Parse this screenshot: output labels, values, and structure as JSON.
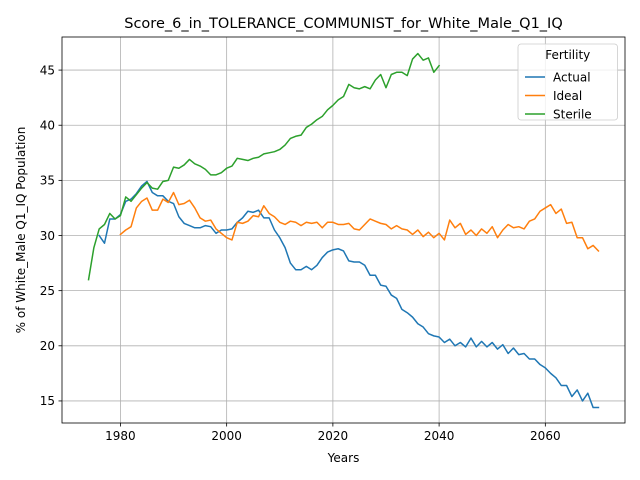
{
  "chart_data": {
    "type": "line",
    "title": "Score_6_in_TOLERANCE_COMMUNIST_for_White_Male_Q1_IQ",
    "xlabel": "Years",
    "ylabel": "% of White_Male Q1_IQ Population",
    "xlim": [
      1969,
      2075
    ],
    "ylim": [
      13,
      48
    ],
    "xticks": [
      1980,
      2000,
      2020,
      2040,
      2060
    ],
    "yticks": [
      15,
      20,
      25,
      30,
      35,
      40,
      45
    ],
    "grid": true,
    "legend": {
      "title": "Fertility",
      "placement": "upper right"
    },
    "series": [
      {
        "name": "Actual",
        "color": "#1f77b4",
        "x": [
          1976,
          1977,
          1978,
          1979,
          1980,
          1981,
          1982,
          1983,
          1984,
          1985,
          1986,
          1987,
          1988,
          1989,
          1990,
          1991,
          1992,
          1993,
          1994,
          1995,
          1996,
          1997,
          1998,
          1999,
          2000,
          2001,
          2002,
          2003,
          2004,
          2005,
          2006,
          2007,
          2008,
          2009,
          2010,
          2011,
          2012,
          2013,
          2014,
          2015,
          2016,
          2017,
          2018,
          2019,
          2020,
          2021,
          2022,
          2023,
          2024,
          2025,
          2026,
          2027,
          2028,
          2029,
          2030,
          2031,
          2032,
          2033,
          2034,
          2035,
          2036,
          2037,
          2038,
          2039,
          2040,
          2041,
          2042,
          2043,
          2044,
          2045,
          2046,
          2047,
          2048,
          2049,
          2050,
          2051,
          2052,
          2053,
          2054,
          2055,
          2056,
          2057,
          2058,
          2059,
          2060,
          2061,
          2062,
          2063,
          2064,
          2065,
          2066,
          2067,
          2068,
          2069,
          2070
        ],
        "values": [
          30.0,
          29.3,
          31.5,
          31.5,
          31.9,
          33.1,
          33.3,
          33.8,
          34.5,
          34.9,
          33.9,
          33.6,
          33.6,
          33.1,
          32.9,
          31.7,
          31.1,
          30.9,
          30.7,
          30.7,
          30.9,
          30.8,
          30.2,
          30.5,
          30.5,
          30.6,
          31.2,
          31.6,
          32.2,
          32.1,
          32.3,
          31.6,
          31.6,
          30.5,
          29.8,
          28.9,
          27.5,
          26.9,
          26.9,
          27.2,
          26.9,
          27.3,
          28.0,
          28.5,
          28.7,
          28.8,
          28.6,
          27.7,
          27.6,
          27.6,
          27.3,
          26.4,
          26.4,
          25.5,
          25.4,
          24.6,
          24.3,
          23.3,
          23.0,
          22.6,
          22.0,
          21.7,
          21.1,
          20.9,
          20.8,
          20.3,
          20.6,
          20.0,
          20.3,
          19.9,
          20.7,
          19.9,
          20.4,
          19.9,
          20.3,
          19.7,
          20.1,
          19.3,
          19.8,
          19.2,
          19.3,
          18.8,
          18.8,
          18.3,
          18.0,
          17.5,
          17.1,
          16.4,
          16.4,
          15.4,
          16.0,
          15.0,
          15.7,
          14.4,
          14.4
        ]
      },
      {
        "name": "Ideal",
        "color": "#ff7f0e",
        "x": [
          1980,
          1981,
          1982,
          1983,
          1984,
          1985,
          1986,
          1987,
          1988,
          1989,
          1990,
          1991,
          1992,
          1993,
          1994,
          1995,
          1996,
          1997,
          1998,
          1999,
          2000,
          2001,
          2002,
          2003,
          2004,
          2005,
          2006,
          2007,
          2008,
          2009,
          2010,
          2011,
          2012,
          2013,
          2014,
          2015,
          2016,
          2017,
          2018,
          2019,
          2020,
          2021,
          2022,
          2023,
          2024,
          2025,
          2026,
          2027,
          2028,
          2029,
          2030,
          2031,
          2032,
          2033,
          2034,
          2035,
          2036,
          2037,
          2038,
          2039,
          2040,
          2041,
          2042,
          2043,
          2044,
          2045,
          2046,
          2047,
          2048,
          2049,
          2050,
          2051,
          2052,
          2053,
          2054,
          2055,
          2056,
          2057,
          2058,
          2059,
          2060,
          2061,
          2062,
          2063,
          2064,
          2065,
          2066,
          2067,
          2068,
          2069,
          2070
        ],
        "values": [
          30.1,
          30.5,
          30.8,
          32.5,
          33.1,
          33.4,
          32.3,
          32.3,
          33.3,
          33.0,
          33.9,
          32.8,
          32.9,
          33.2,
          32.5,
          31.6,
          31.3,
          31.4,
          30.6,
          30.2,
          29.8,
          29.6,
          31.2,
          31.1,
          31.3,
          31.8,
          31.7,
          32.7,
          32.0,
          31.7,
          31.2,
          31.0,
          31.3,
          31.2,
          30.9,
          31.2,
          31.1,
          31.2,
          30.7,
          31.2,
          31.2,
          31.0,
          31.0,
          31.1,
          30.6,
          30.5,
          31.0,
          31.5,
          31.3,
          31.1,
          31.0,
          30.6,
          30.9,
          30.6,
          30.5,
          30.1,
          30.5,
          29.9,
          30.3,
          29.8,
          30.2,
          29.6,
          31.4,
          30.7,
          31.1,
          30.1,
          30.5,
          30.0,
          30.6,
          30.2,
          30.8,
          29.8,
          30.5,
          31.0,
          30.7,
          30.8,
          30.6,
          31.3,
          31.5,
          32.2,
          32.5,
          32.8,
          32.0,
          32.4,
          31.1,
          31.2,
          29.8,
          29.8,
          28.8,
          29.1,
          28.6
        ]
      },
      {
        "name": "Sterile",
        "color": "#2ca02c",
        "x": [
          1974,
          1975,
          1976,
          1977,
          1978,
          1979,
          1980,
          1981,
          1982,
          1983,
          1984,
          1985,
          1986,
          1987,
          1988,
          1989,
          1990,
          1991,
          1992,
          1993,
          1994,
          1995,
          1996,
          1997,
          1998,
          1999,
          2000,
          2001,
          2002,
          2003,
          2004,
          2005,
          2006,
          2007,
          2008,
          2009,
          2010,
          2011,
          2012,
          2013,
          2014,
          2015,
          2016,
          2017,
          2018,
          2019,
          2020,
          2021,
          2022,
          2023,
          2024,
          2025,
          2026,
          2027,
          2028,
          2029,
          2030,
          2031,
          2032,
          2033,
          2034,
          2035,
          2036,
          2037,
          2038,
          2039,
          2040
        ],
        "values": [
          26.0,
          28.9,
          30.6,
          31.0,
          32.0,
          31.5,
          31.8,
          33.5,
          33.1,
          33.7,
          34.3,
          34.8,
          34.3,
          34.2,
          34.9,
          35.0,
          36.2,
          36.1,
          36.4,
          36.9,
          36.5,
          36.3,
          36.0,
          35.5,
          35.5,
          35.7,
          36.1,
          36.3,
          37.0,
          36.9,
          36.8,
          37.0,
          37.1,
          37.4,
          37.5,
          37.6,
          37.8,
          38.2,
          38.8,
          39.0,
          39.1,
          39.8,
          40.1,
          40.5,
          40.8,
          41.4,
          41.8,
          42.3,
          42.6,
          43.7,
          43.4,
          43.3,
          43.5,
          43.3,
          44.1,
          44.6,
          43.4,
          44.6,
          44.8,
          44.8,
          44.5,
          46.0,
          46.5,
          45.9,
          46.1,
          44.8,
          45.4
        ]
      }
    ]
  }
}
